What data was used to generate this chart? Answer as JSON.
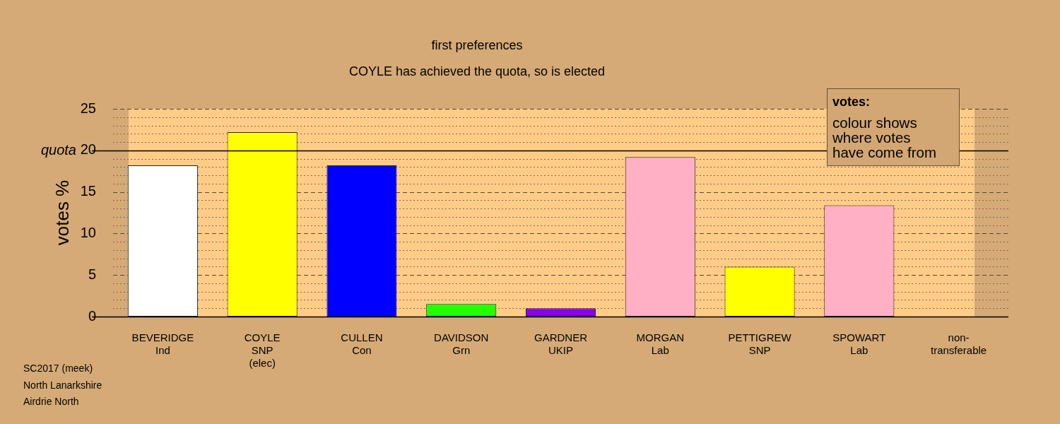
{
  "chart_data": {
    "type": "bar",
    "title": "first preferences",
    "subtitle": "COYLE has achieved the quota, so is elected",
    "ylabel": "votes %",
    "legend_title": "votes:",
    "categories": [
      "BEVERIDGE\nInd",
      "COYLE\nSNP\n(elec)",
      "CULLEN\nCon",
      "DAVIDSON\nGrn",
      "GARDNER\nUKIP",
      "MORGAN\nLab",
      "PETTIGREW\nSNP",
      "SPOWART\nLab",
      "non-\ntransferable"
    ],
    "values": [
      18.2,
      22.2,
      18.2,
      1.5,
      1.0,
      19.2,
      6.0,
      13.4,
      0
    ],
    "colors": [
      "#ffffff",
      "#ffff00",
      "#0000ff",
      "#22ff00",
      "#8800ee",
      "#ffb0c4",
      "#ffff00",
      "#ffb0c4",
      "#ffffff"
    ],
    "ylim": [
      0,
      25
    ],
    "yticks": [
      0,
      {
        "value": 1,
        "label": null
      },
      {
        "value": 2,
        "label": null
      },
      {
        "value": 3,
        "label": null
      },
      {
        "value": 4,
        "label": null
      },
      5,
      {
        "value": 6,
        "label": null
      },
      {
        "value": 7,
        "label": null
      },
      {
        "value": 8,
        "label": null
      },
      {
        "value": 9,
        "label": null
      },
      10,
      {
        "value": 11,
        "label": null
      },
      {
        "value": 12,
        "label": null
      },
      {
        "value": 13,
        "label": null
      },
      {
        "value": 14,
        "label": null
      },
      15,
      {
        "value": 16,
        "label": null
      },
      {
        "value": 17,
        "label": null
      },
      {
        "value": 18,
        "label": null
      },
      {
        "value": 19,
        "label": null
      },
      20,
      {
        "value": 21,
        "label": null
      },
      {
        "value": 22,
        "label": null
      },
      {
        "value": 23,
        "label": null
      },
      {
        "value": 24,
        "label": null
      },
      25
    ],
    "ref_lines": [
      {
        "axis": "y",
        "value": 20,
        "label": "quota"
      }
    ],
    "grid": "y",
    "annotations": [
      "colour shows where votes have come from",
      "SC2017 (meek)",
      "North Lanarkshire",
      "Airdrie North"
    ]
  }
}
